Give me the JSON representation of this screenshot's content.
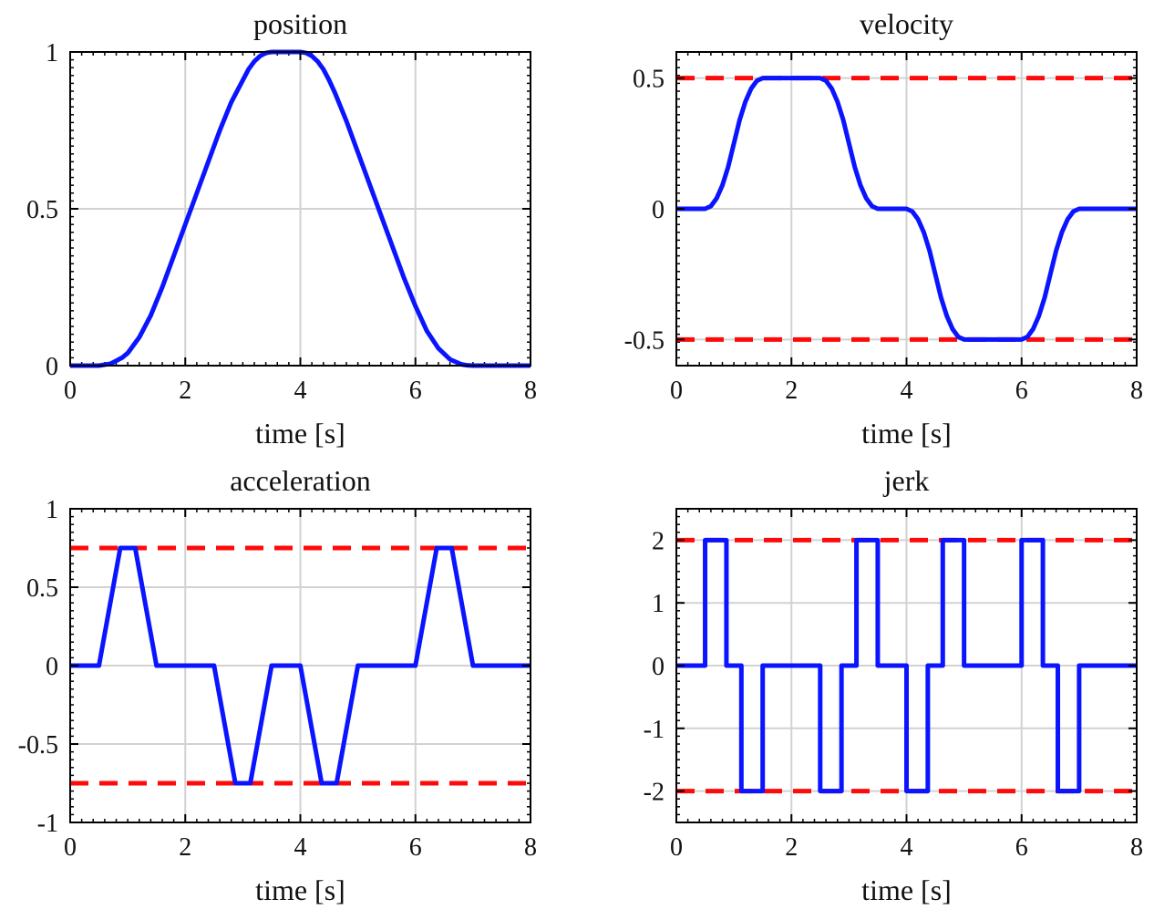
{
  "figure": {
    "description_colors": {
      "signal": "#0a14ff",
      "limit": "#ff0a0a",
      "grid": "#d2d2d2",
      "axis": "#000000"
    }
  },
  "chart_data": [
    {
      "id": "position",
      "type": "line",
      "title": "position",
      "xlabel": "time [s]",
      "ylabel": "",
      "xlim": [
        0,
        8
      ],
      "ylim": [
        0,
        1
      ],
      "xticks": [
        0,
        2,
        4,
        6,
        8
      ],
      "xtick_labels": [
        "0",
        "2",
        "4",
        "6",
        "8"
      ],
      "yticks": [
        0,
        0.5,
        1
      ],
      "ytick_labels": [
        "0",
        "0.5",
        "1"
      ],
      "grid": true,
      "series": [
        {
          "name": "position",
          "color": "#0a14ff",
          "style": "solid",
          "x": [
            0,
            0.5,
            0.7,
            0.9,
            1.0,
            1.2,
            1.4,
            1.6,
            1.8,
            2.0,
            2.2,
            2.4,
            2.6,
            2.8,
            3.0,
            3.1,
            3.2,
            3.3,
            3.4,
            3.5,
            3.6,
            4.0,
            4.1,
            4.2,
            4.3,
            4.4,
            4.5,
            4.6,
            4.8,
            5.0,
            5.2,
            5.4,
            5.6,
            5.8,
            6.0,
            6.2,
            6.4,
            6.6,
            6.8,
            6.9,
            7.0,
            7.1,
            7.2,
            8.0
          ],
          "y": [
            0,
            0,
            0.006,
            0.025,
            0.04,
            0.09,
            0.16,
            0.25,
            0.35,
            0.45,
            0.55,
            0.65,
            0.75,
            0.84,
            0.91,
            0.945,
            0.97,
            0.987,
            0.997,
            1.0,
            1.0,
            1.0,
            0.997,
            0.987,
            0.97,
            0.945,
            0.91,
            0.87,
            0.78,
            0.68,
            0.58,
            0.48,
            0.38,
            0.28,
            0.19,
            0.11,
            0.055,
            0.02,
            0.004,
            0.001,
            0,
            0,
            0,
            0
          ]
        }
      ]
    },
    {
      "id": "velocity",
      "type": "line",
      "title": "velocity",
      "xlabel": "time [s]",
      "ylabel": "",
      "xlim": [
        0,
        8
      ],
      "ylim": [
        -0.6,
        0.6
      ],
      "xticks": [
        0,
        2,
        4,
        6,
        8
      ],
      "xtick_labels": [
        "0",
        "2",
        "4",
        "6",
        "8"
      ],
      "yticks": [
        -0.5,
        0,
        0.5
      ],
      "ytick_labels": [
        "-0.5",
        "0",
        "0.5"
      ],
      "grid": true,
      "series": [
        {
          "name": "velocity",
          "color": "#0a14ff",
          "style": "solid",
          "x": [
            0,
            0.5,
            0.6,
            0.7,
            0.8,
            0.9,
            1.0,
            1.1,
            1.2,
            1.3,
            1.4,
            1.5,
            1.6,
            2.5,
            2.6,
            2.7,
            2.8,
            2.9,
            3.0,
            3.1,
            3.2,
            3.3,
            3.4,
            3.5,
            3.6,
            4.0,
            4.1,
            4.2,
            4.3,
            4.4,
            4.5,
            4.6,
            4.7,
            4.8,
            4.9,
            5.0,
            5.1,
            6.0,
            6.1,
            6.2,
            6.3,
            6.4,
            6.5,
            6.6,
            6.7,
            6.8,
            6.9,
            7.0,
            7.1,
            8.0
          ],
          "y": [
            0,
            0,
            0.01,
            0.04,
            0.09,
            0.16,
            0.25,
            0.34,
            0.41,
            0.46,
            0.49,
            0.5,
            0.5,
            0.5,
            0.49,
            0.46,
            0.41,
            0.34,
            0.25,
            0.16,
            0.09,
            0.04,
            0.01,
            0,
            0,
            0,
            -0.01,
            -0.04,
            -0.09,
            -0.16,
            -0.25,
            -0.34,
            -0.41,
            -0.46,
            -0.49,
            -0.5,
            -0.5,
            -0.5,
            -0.49,
            -0.46,
            -0.41,
            -0.34,
            -0.25,
            -0.16,
            -0.09,
            -0.04,
            -0.01,
            0,
            0,
            0
          ]
        },
        {
          "name": "upper limit",
          "color": "#ff0a0a",
          "style": "dashed",
          "x": [
            0,
            8
          ],
          "y": [
            0.5,
            0.5
          ]
        },
        {
          "name": "lower limit",
          "color": "#ff0a0a",
          "style": "dashed",
          "x": [
            0,
            8
          ],
          "y": [
            -0.5,
            -0.5
          ]
        }
      ]
    },
    {
      "id": "acceleration",
      "type": "line",
      "title": "acceleration",
      "xlabel": "time [s]",
      "ylabel": "",
      "xlim": [
        0,
        8
      ],
      "ylim": [
        -1,
        1
      ],
      "xticks": [
        0,
        2,
        4,
        6,
        8
      ],
      "xtick_labels": [
        "0",
        "2",
        "4",
        "6",
        "8"
      ],
      "yticks": [
        -1,
        -0.5,
        0,
        0.5,
        1
      ],
      "ytick_labels": [
        "-1",
        "-0.5",
        "0",
        "0.5",
        "1"
      ],
      "grid": true,
      "series": [
        {
          "name": "acceleration",
          "color": "#0a14ff",
          "style": "solid",
          "x": [
            0,
            0.5,
            0.87,
            1.13,
            1.5,
            2.5,
            2.87,
            3.13,
            3.5,
            4.0,
            4.37,
            4.63,
            5.0,
            6.0,
            6.37,
            6.63,
            7.0,
            8.0
          ],
          "y": [
            0,
            0,
            0.75,
            0.75,
            0,
            0,
            -0.75,
            -0.75,
            0,
            0,
            -0.75,
            -0.75,
            0,
            0,
            0.75,
            0.75,
            0,
            0
          ]
        },
        {
          "name": "upper limit",
          "color": "#ff0a0a",
          "style": "dashed",
          "x": [
            0,
            8
          ],
          "y": [
            0.75,
            0.75
          ]
        },
        {
          "name": "lower limit",
          "color": "#ff0a0a",
          "style": "dashed",
          "x": [
            0,
            8
          ],
          "y": [
            -0.75,
            -0.75
          ]
        }
      ]
    },
    {
      "id": "jerk",
      "type": "line",
      "title": "jerk",
      "xlabel": "time [s]",
      "ylabel": "",
      "xlim": [
        0,
        8
      ],
      "ylim": [
        -2.5,
        2.5
      ],
      "xticks": [
        0,
        2,
        4,
        6,
        8
      ],
      "xtick_labels": [
        "0",
        "2",
        "4",
        "6",
        "8"
      ],
      "yticks": [
        -2,
        -1,
        0,
        1,
        2
      ],
      "ytick_labels": [
        "-2",
        "-1",
        "0",
        "1",
        "2"
      ],
      "grid": true,
      "series": [
        {
          "name": "jerk",
          "color": "#0a14ff",
          "style": "solid",
          "x": [
            0,
            0.5,
            0.5,
            0.87,
            0.87,
            1.13,
            1.13,
            1.5,
            1.5,
            2.5,
            2.5,
            2.87,
            2.87,
            3.13,
            3.13,
            3.5,
            3.5,
            4.0,
            4.0,
            4.37,
            4.37,
            4.63,
            4.63,
            5.0,
            5.0,
            6.0,
            6.0,
            6.37,
            6.37,
            6.63,
            6.63,
            7.0,
            7.0,
            8.0
          ],
          "y": [
            0,
            0,
            2,
            2,
            0,
            0,
            -2,
            -2,
            0,
            0,
            -2,
            -2,
            0,
            0,
            2,
            2,
            0,
            0,
            -2,
            -2,
            0,
            0,
            2,
            2,
            0,
            0,
            2,
            2,
            0,
            0,
            -2,
            -2,
            0,
            0
          ]
        },
        {
          "name": "upper limit",
          "color": "#ff0a0a",
          "style": "dashed",
          "x": [
            0,
            8
          ],
          "y": [
            2,
            2
          ]
        },
        {
          "name": "lower limit",
          "color": "#ff0a0a",
          "style": "dashed",
          "x": [
            0,
            8
          ],
          "y": [
            -2,
            -2
          ]
        }
      ]
    }
  ]
}
